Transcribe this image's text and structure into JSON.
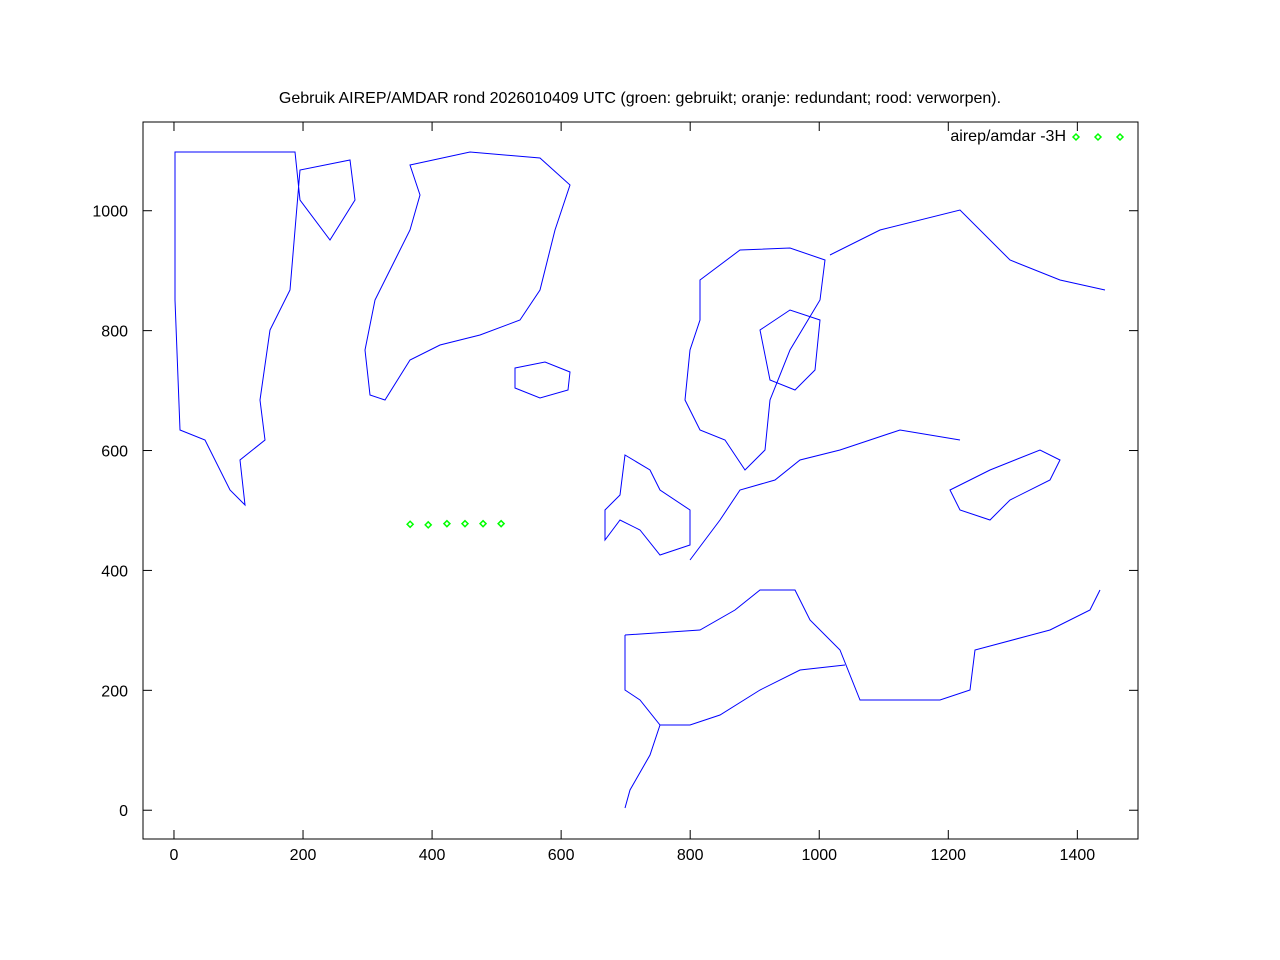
{
  "chart_data": {
    "type": "scatter",
    "title": "Gebruik AIREP/AMDAR rond 2026010409 UTC (groen: gebruikt; oranje: redundant; rood: verworpen).",
    "xlabel": "",
    "ylabel": "",
    "xlim": [
      -48,
      1494
    ],
    "ylim": [
      -48,
      1148
    ],
    "xticks": [
      0,
      200,
      400,
      600,
      800,
      1000,
      1200,
      1400
    ],
    "yticks": [
      0,
      200,
      400,
      600,
      800,
      1000
    ],
    "grid": false,
    "legend_position": "top-right",
    "background": "coastline map of North Atlantic and Europe (blue)",
    "series": [
      {
        "name": "airep/amdar -3H",
        "color": "#00ff00",
        "marker": "diamond",
        "points": [
          [
            366,
            477
          ],
          [
            394,
            476
          ],
          [
            423,
            478
          ],
          [
            451,
            478
          ],
          [
            479,
            478
          ],
          [
            507,
            478
          ]
        ]
      }
    ],
    "map_color": "#0000ff"
  }
}
